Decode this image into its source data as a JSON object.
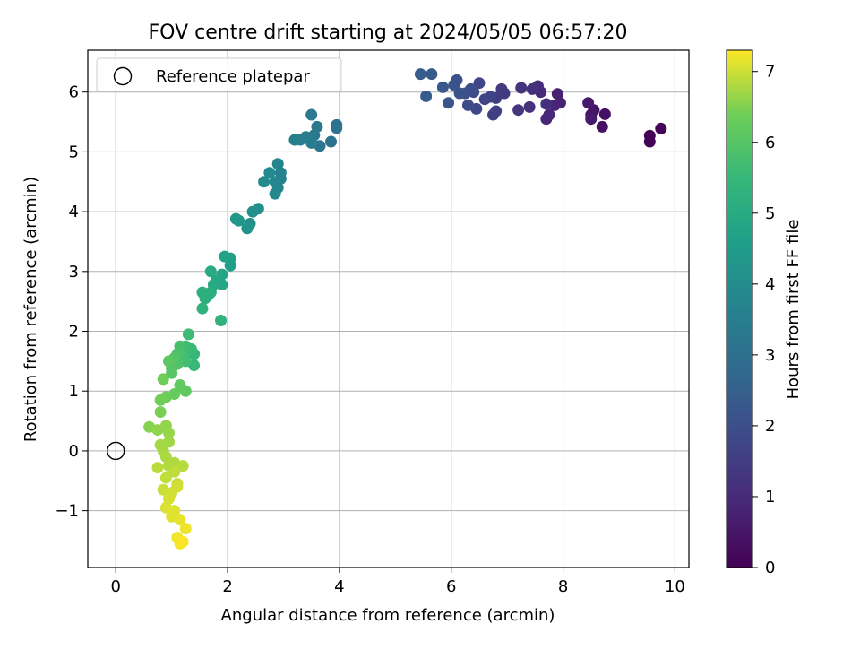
{
  "chart_data": {
    "type": "scatter",
    "title": "FOV centre drift starting at 2024/05/05 06:57:20",
    "xlabel": "Angular distance from reference (arcmin)",
    "ylabel": "Rotation from reference (arcmin)",
    "xlim": [
      -0.5,
      10.25
    ],
    "ylim": [
      -1.95,
      6.7
    ],
    "x_ticks": [
      0,
      2,
      4,
      6,
      8,
      10
    ],
    "y_ticks": [
      -1,
      0,
      1,
      2,
      3,
      4,
      5,
      6
    ],
    "y_tick_labels": [
      "−1",
      "0",
      "1",
      "2",
      "3",
      "4",
      "5",
      "6"
    ],
    "grid": true,
    "legend": {
      "location": "top-left",
      "entries": [
        "Reference platepar"
      ]
    },
    "reference_point": {
      "x": 0,
      "y": 0,
      "label": "Reference platepar"
    },
    "colorbar": {
      "label": "Hours from first FF file",
      "colormap": "viridis",
      "range": [
        0,
        7.3
      ],
      "ticks": [
        0,
        1,
        2,
        3,
        4,
        5,
        6,
        7
      ]
    },
    "series": [
      {
        "points": [
          [
            9.55,
            5.17,
            0.05
          ],
          [
            9.55,
            5.27,
            0.08
          ],
          [
            9.75,
            5.39,
            0.12
          ],
          [
            8.75,
            5.63,
            0.35
          ],
          [
            8.7,
            5.42,
            0.4
          ],
          [
            8.55,
            5.7,
            0.45
          ],
          [
            8.5,
            5.62,
            0.5
          ],
          [
            8.45,
            5.82,
            0.55
          ],
          [
            8.5,
            5.55,
            0.6
          ],
          [
            7.9,
            5.97,
            0.75
          ],
          [
            7.95,
            5.82,
            0.8
          ],
          [
            7.85,
            5.78,
            0.85
          ],
          [
            7.7,
            5.55,
            0.9
          ],
          [
            7.75,
            5.62,
            0.95
          ],
          [
            7.6,
            6.0,
            1.0
          ],
          [
            7.55,
            6.1,
            1.05
          ],
          [
            7.7,
            5.8,
            1.1
          ],
          [
            7.4,
            5.75,
            1.15
          ],
          [
            7.45,
            6.05,
            1.2
          ],
          [
            7.25,
            6.07,
            1.25
          ],
          [
            7.2,
            5.7,
            1.3
          ],
          [
            6.95,
            5.98,
            1.4
          ],
          [
            6.9,
            6.05,
            1.45
          ],
          [
            6.8,
            5.9,
            1.5
          ],
          [
            6.75,
            5.62,
            1.55
          ],
          [
            6.8,
            5.68,
            1.6
          ],
          [
            6.6,
            5.88,
            1.65
          ],
          [
            6.7,
            5.92,
            1.7
          ],
          [
            6.5,
            6.15,
            1.75
          ],
          [
            6.45,
            5.72,
            1.8
          ],
          [
            6.4,
            6.0,
            1.85
          ],
          [
            6.3,
            5.78,
            1.9
          ],
          [
            6.35,
            6.05,
            1.95
          ],
          [
            6.25,
            5.98,
            2.0
          ],
          [
            6.1,
            6.2,
            2.05
          ],
          [
            6.15,
            5.98,
            2.1
          ],
          [
            6.05,
            6.12,
            2.15
          ],
          [
            5.95,
            5.82,
            2.2
          ],
          [
            5.85,
            6.08,
            2.25
          ],
          [
            5.65,
            6.3,
            2.3
          ],
          [
            5.55,
            5.93,
            2.35
          ],
          [
            5.45,
            6.3,
            2.4
          ],
          [
            3.95,
            5.4,
            3.05
          ],
          [
            3.95,
            5.45,
            3.1
          ],
          [
            3.85,
            5.17,
            3.15
          ],
          [
            3.65,
            5.1,
            3.2
          ],
          [
            3.6,
            5.42,
            3.25
          ],
          [
            3.55,
            5.28,
            3.3
          ],
          [
            3.5,
            5.62,
            3.35
          ],
          [
            3.5,
            5.15,
            3.4
          ],
          [
            3.4,
            5.25,
            3.45
          ],
          [
            3.3,
            5.2,
            3.5
          ],
          [
            3.2,
            5.2,
            3.55
          ],
          [
            2.95,
            4.55,
            3.6
          ],
          [
            2.95,
            4.65,
            3.65
          ],
          [
            2.9,
            4.8,
            3.7
          ],
          [
            2.9,
            4.4,
            3.75
          ],
          [
            2.85,
            4.5,
            3.8
          ],
          [
            2.85,
            4.3,
            3.85
          ],
          [
            2.75,
            4.65,
            3.9
          ],
          [
            2.65,
            4.5,
            3.95
          ],
          [
            2.55,
            4.05,
            4.05
          ],
          [
            2.45,
            4.0,
            4.1
          ],
          [
            2.4,
            3.8,
            4.15
          ],
          [
            2.35,
            3.72,
            4.2
          ],
          [
            2.2,
            3.85,
            4.3
          ],
          [
            2.15,
            3.88,
            4.35
          ],
          [
            2.05,
            3.1,
            4.6
          ],
          [
            2.05,
            3.22,
            4.65
          ],
          [
            1.95,
            3.25,
            4.7
          ],
          [
            1.9,
            2.95,
            4.8
          ],
          [
            1.9,
            2.78,
            4.85
          ],
          [
            1.8,
            2.85,
            4.9
          ],
          [
            1.75,
            2.78,
            4.95
          ],
          [
            1.7,
            3.0,
            5.0
          ],
          [
            1.7,
            2.65,
            5.05
          ],
          [
            1.65,
            2.6,
            5.1
          ],
          [
            1.6,
            2.55,
            5.15
          ],
          [
            1.55,
            2.65,
            5.2
          ],
          [
            1.55,
            2.38,
            5.25
          ],
          [
            1.88,
            2.18,
            5.3
          ],
          [
            1.4,
            1.62,
            5.45
          ],
          [
            1.4,
            1.43,
            5.5
          ],
          [
            1.35,
            1.7,
            5.55
          ],
          [
            1.3,
            1.95,
            5.6
          ],
          [
            1.25,
            1.75,
            5.65
          ],
          [
            1.25,
            1.5,
            5.7
          ],
          [
            1.2,
            1.58,
            5.75
          ],
          [
            1.15,
            1.75,
            5.8
          ],
          [
            1.1,
            1.62,
            5.85
          ],
          [
            1.1,
            1.45,
            5.9
          ],
          [
            1.05,
            1.55,
            5.95
          ],
          [
            1.0,
            1.38,
            6.0
          ],
          [
            1.0,
            1.3,
            6.05
          ],
          [
            0.95,
            1.5,
            6.1
          ],
          [
            1.25,
            1.0,
            6.15
          ],
          [
            1.15,
            1.1,
            6.2
          ],
          [
            1.05,
            0.95,
            6.25
          ],
          [
            0.9,
            0.9,
            6.3
          ],
          [
            0.85,
            1.2,
            6.35
          ],
          [
            0.8,
            0.85,
            6.4
          ],
          [
            0.8,
            0.65,
            6.45
          ],
          [
            0.6,
            0.4,
            6.55
          ],
          [
            0.75,
            0.35,
            6.6
          ],
          [
            0.9,
            0.42,
            6.62
          ],
          [
            0.95,
            0.3,
            6.65
          ],
          [
            0.95,
            0.15,
            6.7
          ],
          [
            0.8,
            0.1,
            6.72
          ],
          [
            0.85,
            0.0,
            6.75
          ],
          [
            0.9,
            -0.1,
            6.78
          ],
          [
            1.05,
            -0.2,
            6.8
          ],
          [
            0.95,
            -0.25,
            6.82
          ],
          [
            1.2,
            -0.25,
            6.85
          ],
          [
            0.75,
            -0.28,
            6.88
          ],
          [
            1.05,
            -0.35,
            6.9
          ],
          [
            0.9,
            -0.45,
            6.92
          ],
          [
            1.1,
            -0.55,
            6.95
          ],
          [
            0.85,
            -0.65,
            6.97
          ],
          [
            1.0,
            -0.7,
            7.0
          ],
          [
            1.1,
            -0.6,
            7.02
          ],
          [
            0.95,
            -0.8,
            7.05
          ],
          [
            0.9,
            -0.95,
            7.08
          ],
          [
            1.05,
            -1.0,
            7.1
          ],
          [
            1.0,
            -1.1,
            7.12
          ],
          [
            1.15,
            -1.15,
            7.15
          ],
          [
            1.25,
            -1.3,
            7.2
          ],
          [
            1.1,
            -1.45,
            7.22
          ],
          [
            1.15,
            -1.55,
            7.25
          ],
          [
            1.2,
            -1.52,
            7.28
          ]
        ]
      }
    ]
  }
}
